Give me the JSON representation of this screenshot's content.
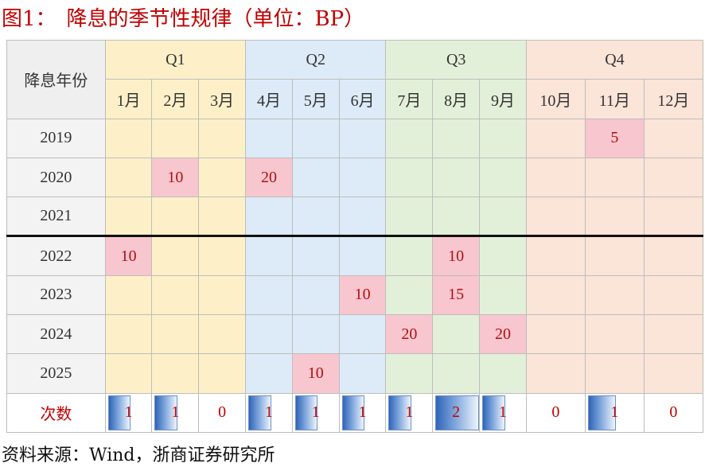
{
  "title": "图1：　降息的季节性规律（单位：BP）",
  "source": "资料来源：Wind，浙商证券研究所",
  "table": {
    "corner": "降息年份",
    "quarters": [
      "Q1",
      "Q2",
      "Q3",
      "Q4"
    ],
    "months": [
      "1月",
      "2月",
      "3月",
      "4月",
      "5月",
      "6月",
      "7月",
      "8月",
      "9月",
      "10月",
      "11月",
      "12月"
    ],
    "rows": [
      {
        "year": "2019",
        "cells": [
          "",
          "",
          "",
          "",
          "",
          "",
          "",
          "",
          "",
          "",
          "5",
          ""
        ]
      },
      {
        "year": "2020",
        "cells": [
          "",
          "10",
          "",
          "20",
          "",
          "",
          "",
          "",
          "",
          "",
          "",
          ""
        ]
      },
      {
        "year": "2021",
        "cells": [
          "",
          "",
          "",
          "",
          "",
          "",
          "",
          "",
          "",
          "",
          "",
          ""
        ]
      },
      {
        "year": "2022",
        "cells": [
          "10",
          "",
          "",
          "",
          "",
          "",
          "",
          "10",
          "",
          "",
          "",
          ""
        ]
      },
      {
        "year": "2023",
        "cells": [
          "",
          "",
          "",
          "",
          "",
          "10",
          "",
          "15",
          "",
          "",
          "",
          ""
        ]
      },
      {
        "year": "2024",
        "cells": [
          "",
          "",
          "",
          "",
          "",
          "",
          "20",
          "",
          "20",
          "",
          "",
          ""
        ]
      },
      {
        "year": "2025",
        "cells": [
          "",
          "",
          "",
          "",
          "10",
          "",
          "",
          "",
          "",
          "",
          "",
          ""
        ]
      }
    ],
    "count_label": "次数",
    "counts": [
      "1",
      "1",
      "0",
      "1",
      "1",
      "1",
      "1",
      "2",
      "1",
      "0",
      "1",
      "0"
    ]
  },
  "colors": {
    "q1": "#fdf0c8",
    "q2": "#dcebf7",
    "q3": "#e3f0d9",
    "q4": "#fbe4d8",
    "highlight": "#f8c6cf",
    "accent": "#c00000"
  }
}
